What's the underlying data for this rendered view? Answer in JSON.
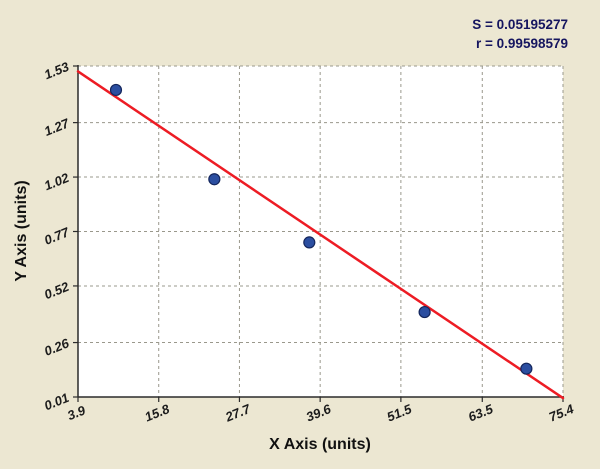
{
  "figure": {
    "background": "#ece7d2"
  },
  "stats": {
    "s_label": "S = 0.05195277",
    "r_label": "r = 0.99598579"
  },
  "chart_data": {
    "type": "scatter",
    "title": "",
    "xlabel": "X Axis (units)",
    "ylabel": "Y Axis (units)",
    "xlim": [
      3.9,
      75.4
    ],
    "ylim": [
      0.01,
      1.53
    ],
    "x_ticks": [
      "3.9",
      "15.8",
      "27.7",
      "39.6",
      "51.5",
      "63.5",
      "75.4"
    ],
    "y_ticks": [
      "0.01",
      "0.26",
      "0.52",
      "0.77",
      "1.02",
      "1.27",
      "1.53"
    ],
    "grid": "dashed",
    "legend": "none",
    "points": [
      [
        9.5,
        1.42
      ],
      [
        24.0,
        1.01
      ],
      [
        38.0,
        0.72
      ],
      [
        55.0,
        0.4
      ],
      [
        70.0,
        0.14
      ]
    ],
    "fit_line": {
      "x1": 3.9,
      "y1": 1.505,
      "x2": 75.4,
      "y2": 0.005
    },
    "annotations": [
      "S = 0.05195277",
      "r = 0.99598579"
    ],
    "colors": {
      "background": "#ece7d2",
      "plot_background": "#ffffff",
      "line": "#ed1c24",
      "point_fill": "#2b4ea0",
      "point_edge": "#14265c",
      "grid": "#9a988c",
      "axis": "#2b2b2b",
      "tick_text": "#1c1c1c",
      "stats_text": "#15155f"
    }
  }
}
